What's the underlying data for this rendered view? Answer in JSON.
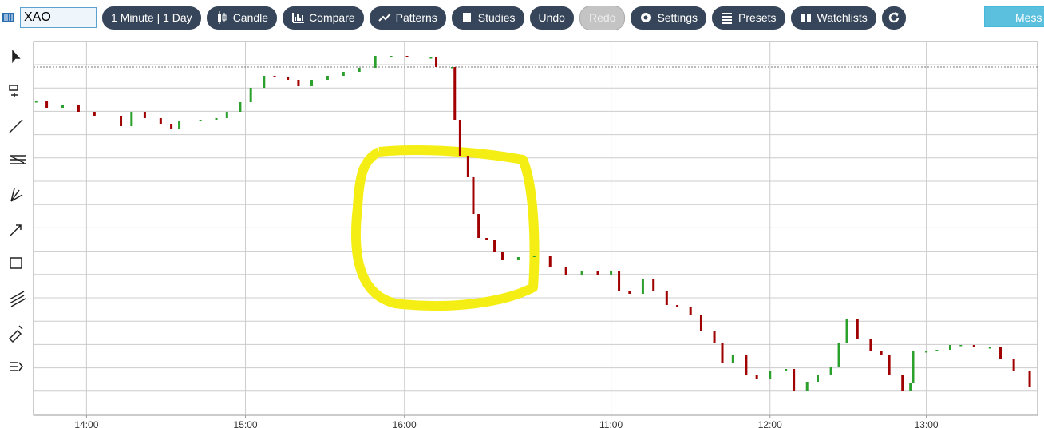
{
  "toolbar": {
    "symbol": "XAO",
    "buttons": [
      "1 Minute | 1 Day",
      "Candle",
      "Compare",
      "Patterns",
      "Studies",
      "Undo",
      "Redo",
      "Settings",
      "Presets",
      "Watchlists"
    ],
    "message": "Mess"
  },
  "chart_data": {
    "type": "candle",
    "x": [
      1,
      5,
      11,
      17,
      23,
      33,
      37,
      42,
      48,
      52,
      55,
      63,
      69,
      73,
      78,
      82,
      87,
      91,
      96,
      100,
      105,
      111,
      117,
      123,
      129,
      135,
      141,
      150,
      152,
      158,
      159,
      161,
      164,
      166,
      168,
      171,
      174,
      177,
      183,
      189,
      195,
      201,
      207,
      213,
      218,
      221,
      225,
      230,
      234,
      239,
      243,
      248,
      252,
      257,
      260,
      264,
      269,
      273,
      278,
      284,
      287,
      292,
      296,
      301,
      304,
      307,
      311,
      316,
      320,
      323,
      328,
      331,
      332,
      337,
      341,
      346,
      350,
      355,
      361,
      365,
      370,
      376
    ],
    "values": [
      393,
      385,
      388,
      380,
      375,
      362,
      380,
      372,
      365,
      358,
      368,
      370,
      372,
      380,
      392,
      410,
      425,
      423,
      420,
      412,
      420,
      425,
      430,
      435,
      450,
      450,
      448,
      448,
      436,
      436,
      370,
      325,
      298,
      252,
      222,
      220,
      205,
      195,
      198,
      200,
      185,
      175,
      180,
      175,
      180,
      155,
      152,
      170,
      155,
      138,
      135,
      125,
      105,
      90,
      65,
      75,
      50,
      45,
      55,
      58,
      30,
      42,
      50,
      60,
      90,
      120,
      95,
      80,
      75,
      50,
      30,
      40,
      80,
      80,
      82,
      88,
      88,
      85,
      85,
      70,
      55,
      35
    ],
    "xlim": [
      0,
      379
    ],
    "ylim": [
      0,
      468
    ],
    "xticks": [
      {
        "value": 20,
        "label": "14:00"
      },
      {
        "value": 80,
        "label": "15:00"
      },
      {
        "value": 140,
        "label": "16:00"
      },
      {
        "value": 218,
        "label": "11:00"
      },
      {
        "value": 278,
        "label": "12:00"
      },
      {
        "value": 337,
        "label": "13:00"
      }
    ],
    "colors": {
      "up": "#2ca02c",
      "down": "#a00000"
    },
    "grid": true
  }
}
